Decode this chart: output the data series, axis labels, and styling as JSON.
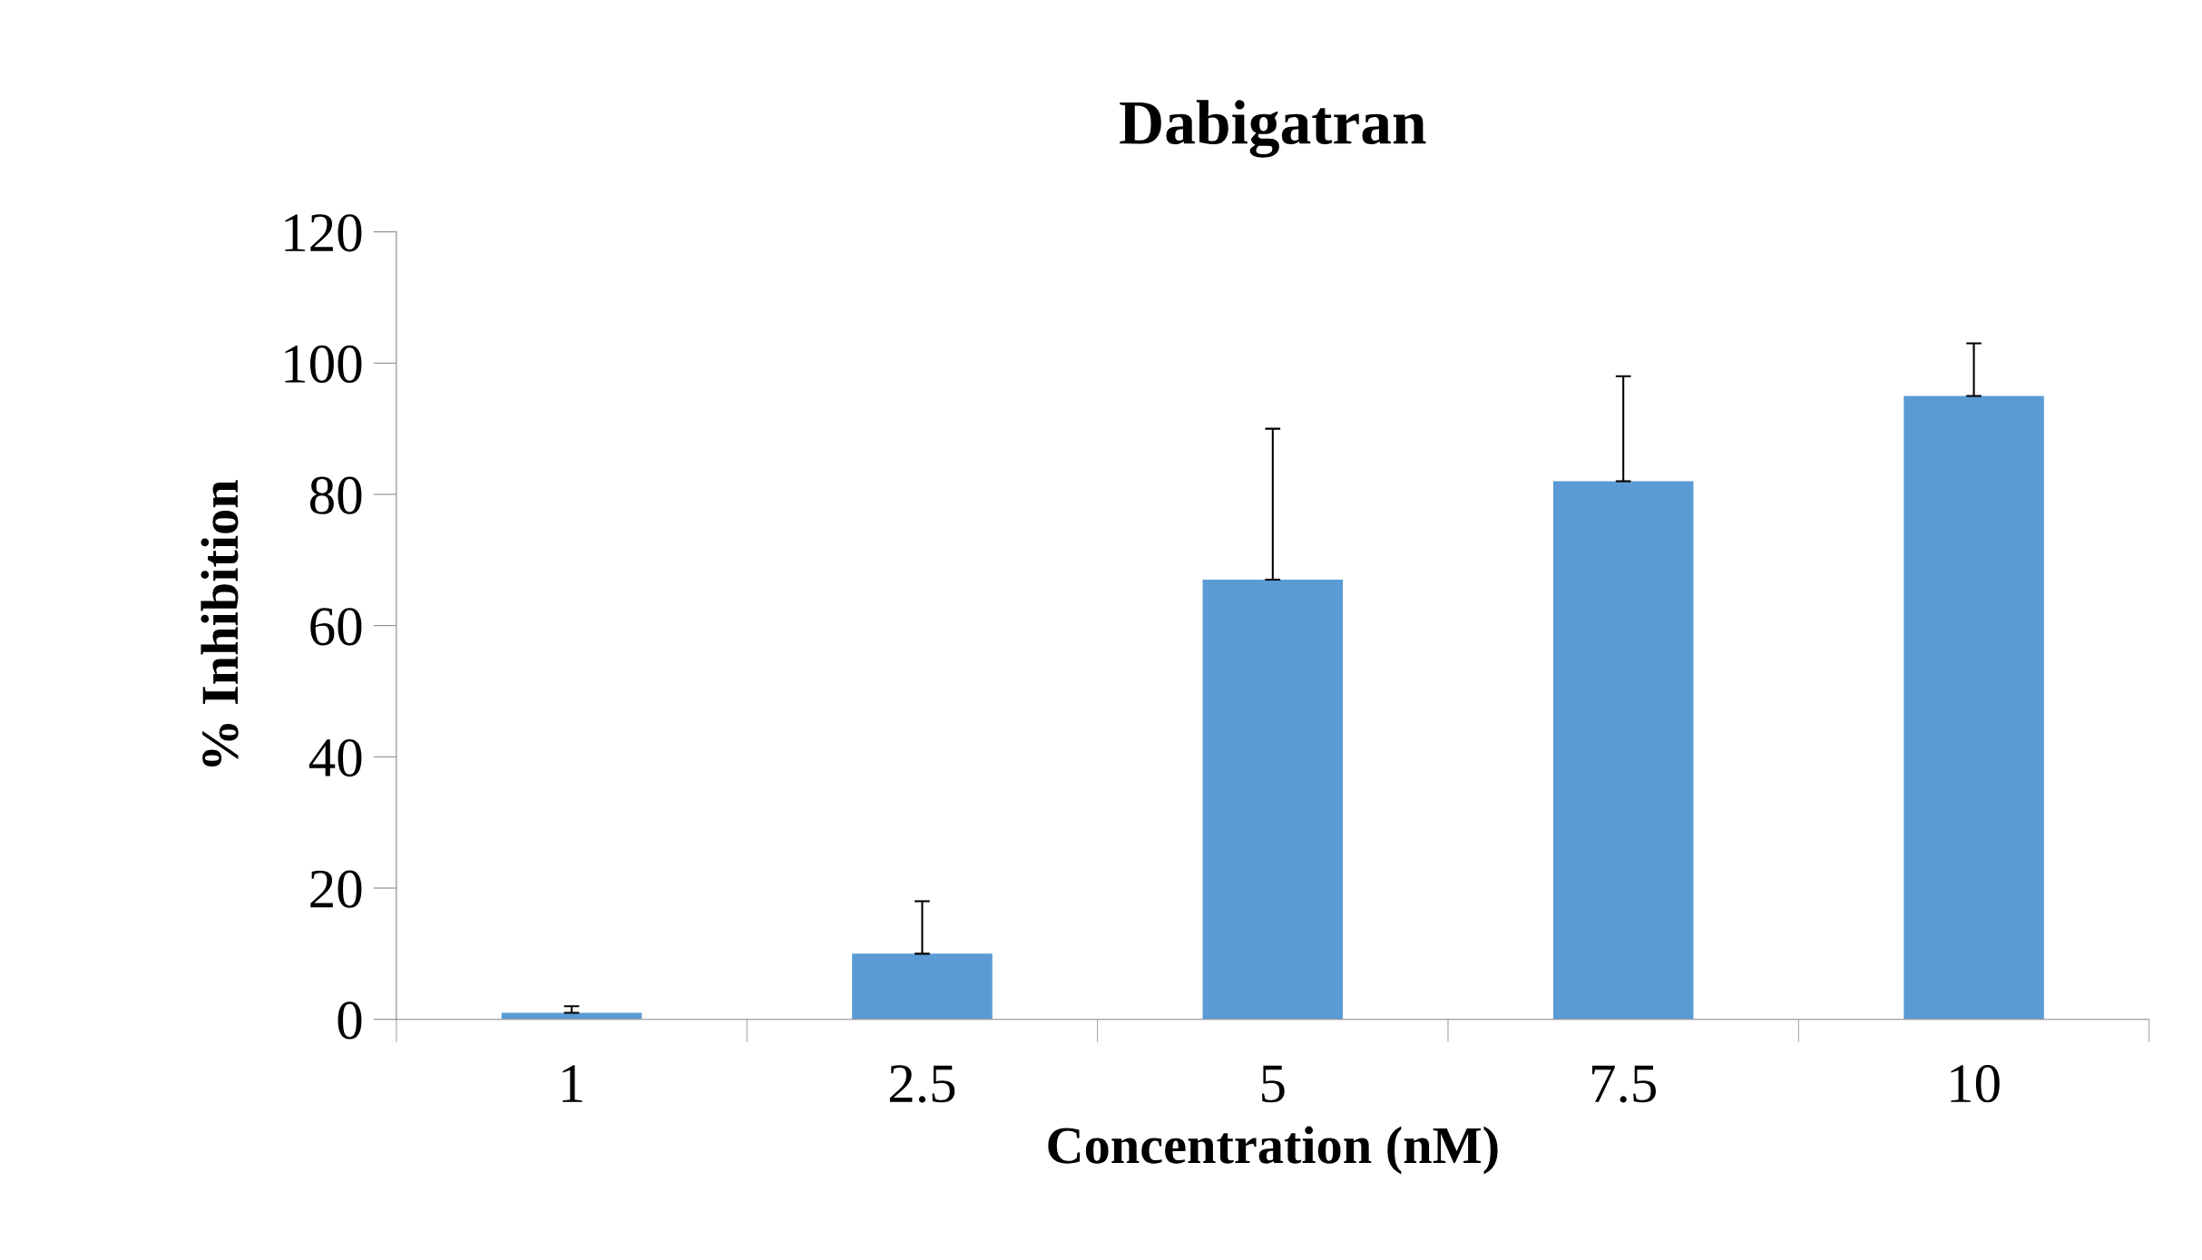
{
  "chart_data": {
    "type": "bar",
    "title": "Dabigatran",
    "xlabel": "Concentration (nM)",
    "ylabel": "% Inhibition",
    "categories": [
      "1",
      "2.5",
      "5",
      "7.5",
      "10"
    ],
    "values": [
      1,
      10,
      67,
      82,
      95
    ],
    "errors": [
      [
        1,
        2
      ],
      [
        10,
        18
      ],
      [
        67,
        90
      ],
      [
        82,
        98
      ],
      [
        95,
        103
      ]
    ],
    "color": "#5b9bd5",
    "ylim": [
      0,
      120
    ],
    "yticks": [
      0,
      20,
      40,
      60,
      80,
      100,
      120
    ],
    "grid": false,
    "legend": false
  }
}
